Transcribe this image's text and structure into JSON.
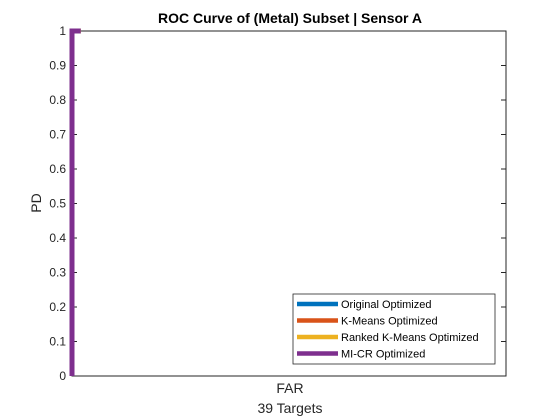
{
  "chart_data": {
    "type": "line",
    "title": "ROC Curve of (Metal) Subset | Sensor A",
    "xlabel": "FAR",
    "xlabel_sub": "39 Targets",
    "ylabel": "PD",
    "ylim": [
      0,
      1
    ],
    "xlim": [
      0,
      1
    ],
    "yticks": [
      "0",
      "0.1",
      "0.2",
      "0.3",
      "0.4",
      "0.5",
      "0.6",
      "0.7",
      "0.8",
      "0.9",
      "1"
    ],
    "grid": false,
    "legend_position": "bottom-right",
    "series": [
      {
        "name": "Original Optimized",
        "color": "#0072BD",
        "x": [
          0,
          0,
          0.02
        ],
        "y": [
          0,
          1,
          1
        ]
      },
      {
        "name": "K-Means Optimized",
        "color": "#D95319",
        "x": [
          0,
          0,
          0.02
        ],
        "y": [
          0,
          1,
          1
        ]
      },
      {
        "name": "Ranked K-Means Optimized",
        "color": "#EDB120",
        "x": [
          0,
          0,
          0.02
        ],
        "y": [
          0,
          1,
          1
        ]
      },
      {
        "name": "MI-CR Optimized",
        "color": "#7E2F8E",
        "x": [
          0,
          0,
          0.02
        ],
        "y": [
          0,
          1,
          1
        ]
      }
    ]
  }
}
